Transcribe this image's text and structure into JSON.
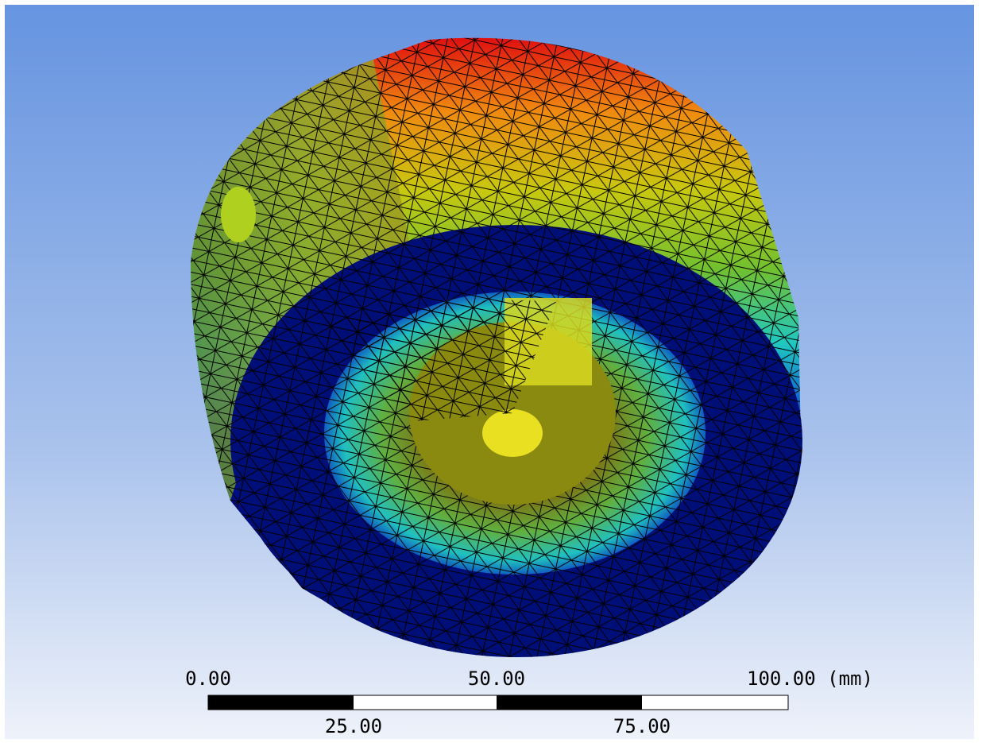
{
  "scale_bar": {
    "labels_top": [
      "0.00",
      "50.00",
      "100.00 (mm)"
    ],
    "labels_bottom": [
      "25.00",
      "75.00"
    ]
  }
}
